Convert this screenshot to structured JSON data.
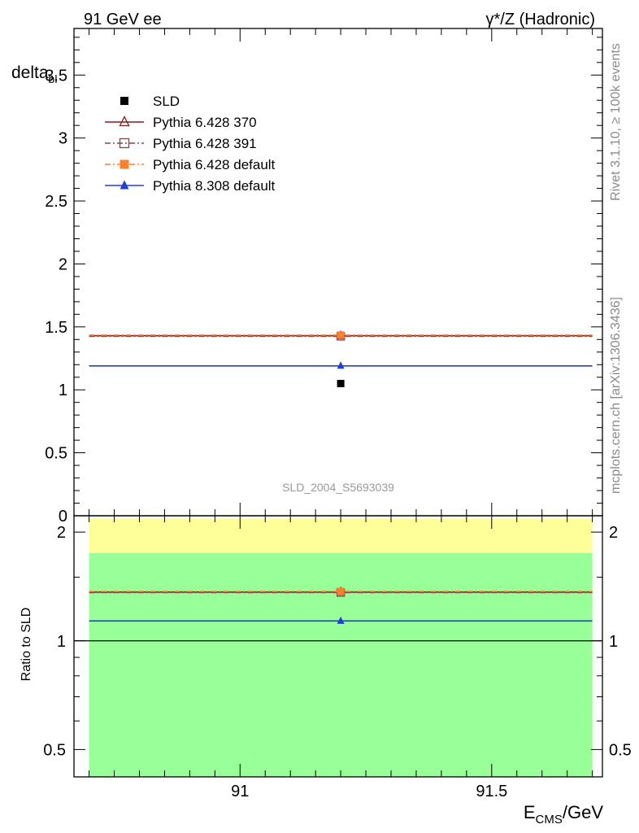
{
  "header": {
    "left": "91 GeV ee",
    "right": "γ*/Z (Hadronic)"
  },
  "side_labels": {
    "rivet": "Rivet 3.1.10, ≥ 100k events",
    "mcplots": "mcplots.cern.ch [arXiv:1306.3436]"
  },
  "chart_data": [
    {
      "type": "scatter",
      "panel": "main",
      "ylabel_main": "delta",
      "ylabel_sub": "bl",
      "analysis_label": "SLD_2004_S5693039",
      "xlim": [
        90.67,
        91.72
      ],
      "ylim": [
        0,
        3.87
      ],
      "y_ticks": [
        0,
        0.5,
        1,
        1.5,
        2,
        2.5,
        3,
        3.5
      ],
      "y_tick_labels": [
        "0",
        "0.5",
        "1",
        "1.5",
        "2",
        "2.5",
        "3",
        "3.5"
      ],
      "legend_position": "top-left",
      "series": [
        {
          "name": "SLD",
          "color": "#000000",
          "marker": "square",
          "line": "none",
          "x": [
            91.2
          ],
          "y": [
            1.05
          ],
          "xlo": [
            91.2
          ],
          "xhi": [
            91.2
          ]
        },
        {
          "name": "Pythia 6.428 370",
          "color": "#8b1a1a",
          "marker": "triangle-open",
          "line": "solid",
          "x": [
            91.2
          ],
          "y": [
            1.43
          ],
          "xlo": [
            90.7
          ],
          "xhi": [
            91.7
          ]
        },
        {
          "name": "Pythia 6.428 391",
          "color": "#7a4a4a",
          "marker": "square-open",
          "line": "dashdot",
          "x": [
            91.2
          ],
          "y": [
            1.425
          ],
          "xlo": [
            90.7
          ],
          "xhi": [
            91.7
          ]
        },
        {
          "name": "Pythia 6.428 default",
          "color": "#ff7f2a",
          "marker": "square",
          "line": "dashdot",
          "x": [
            91.2
          ],
          "y": [
            1.435
          ],
          "xlo": [
            90.7
          ],
          "xhi": [
            91.7
          ]
        },
        {
          "name": "Pythia 8.308 default",
          "color": "#1f3fd6",
          "marker": "triangle",
          "line": "solid",
          "x": [
            91.2
          ],
          "y": [
            1.19
          ],
          "xlo": [
            90.7
          ],
          "xhi": [
            91.7
          ]
        }
      ]
    },
    {
      "type": "scatter",
      "panel": "ratio",
      "ylabel": "Ratio to SLD",
      "xlabel_main": "E",
      "xlabel_sub": "CMS",
      "xlabel_unit": "/GeV",
      "xlim": [
        90.67,
        91.72
      ],
      "ylim": [
        0.42,
        2.22
      ],
      "y_log": true,
      "y_ticks": [
        0.5,
        1,
        2
      ],
      "y_tick_labels": [
        "0.5",
        "1",
        "2"
      ],
      "x_ticks": [
        91,
        91.5
      ],
      "x_tick_labels": [
        "91",
        "91.5"
      ],
      "bands": [
        {
          "color": "#ffff99",
          "low": 0.42,
          "high": 2.18
        },
        {
          "color": "#99ff99",
          "low": 0.42,
          "high": 1.75
        }
      ],
      "reference_line": 1,
      "series": [
        {
          "name": "Pythia 6.428 370",
          "color": "#8b1a1a",
          "marker": "triangle-open",
          "line": "solid",
          "x": [
            91.2
          ],
          "y": [
            1.365
          ],
          "xlo": [
            90.7
          ],
          "xhi": [
            91.7
          ]
        },
        {
          "name": "Pythia 6.428 391",
          "color": "#7a4a4a",
          "marker": "square-open",
          "line": "dashdot",
          "x": [
            91.2
          ],
          "y": [
            1.36
          ],
          "xlo": [
            90.7
          ],
          "xhi": [
            91.7
          ]
        },
        {
          "name": "Pythia 6.428 default",
          "color": "#ff7f2a",
          "marker": "square",
          "line": "dashdot",
          "x": [
            91.2
          ],
          "y": [
            1.37
          ],
          "xlo": [
            90.7
          ],
          "xhi": [
            91.7
          ]
        },
        {
          "name": "Pythia 8.308 default",
          "color": "#1f3fd6",
          "marker": "triangle",
          "line": "solid",
          "x": [
            91.2
          ],
          "y": [
            1.135
          ],
          "xlo": [
            90.7
          ],
          "xhi": [
            91.7
          ]
        }
      ]
    }
  ]
}
